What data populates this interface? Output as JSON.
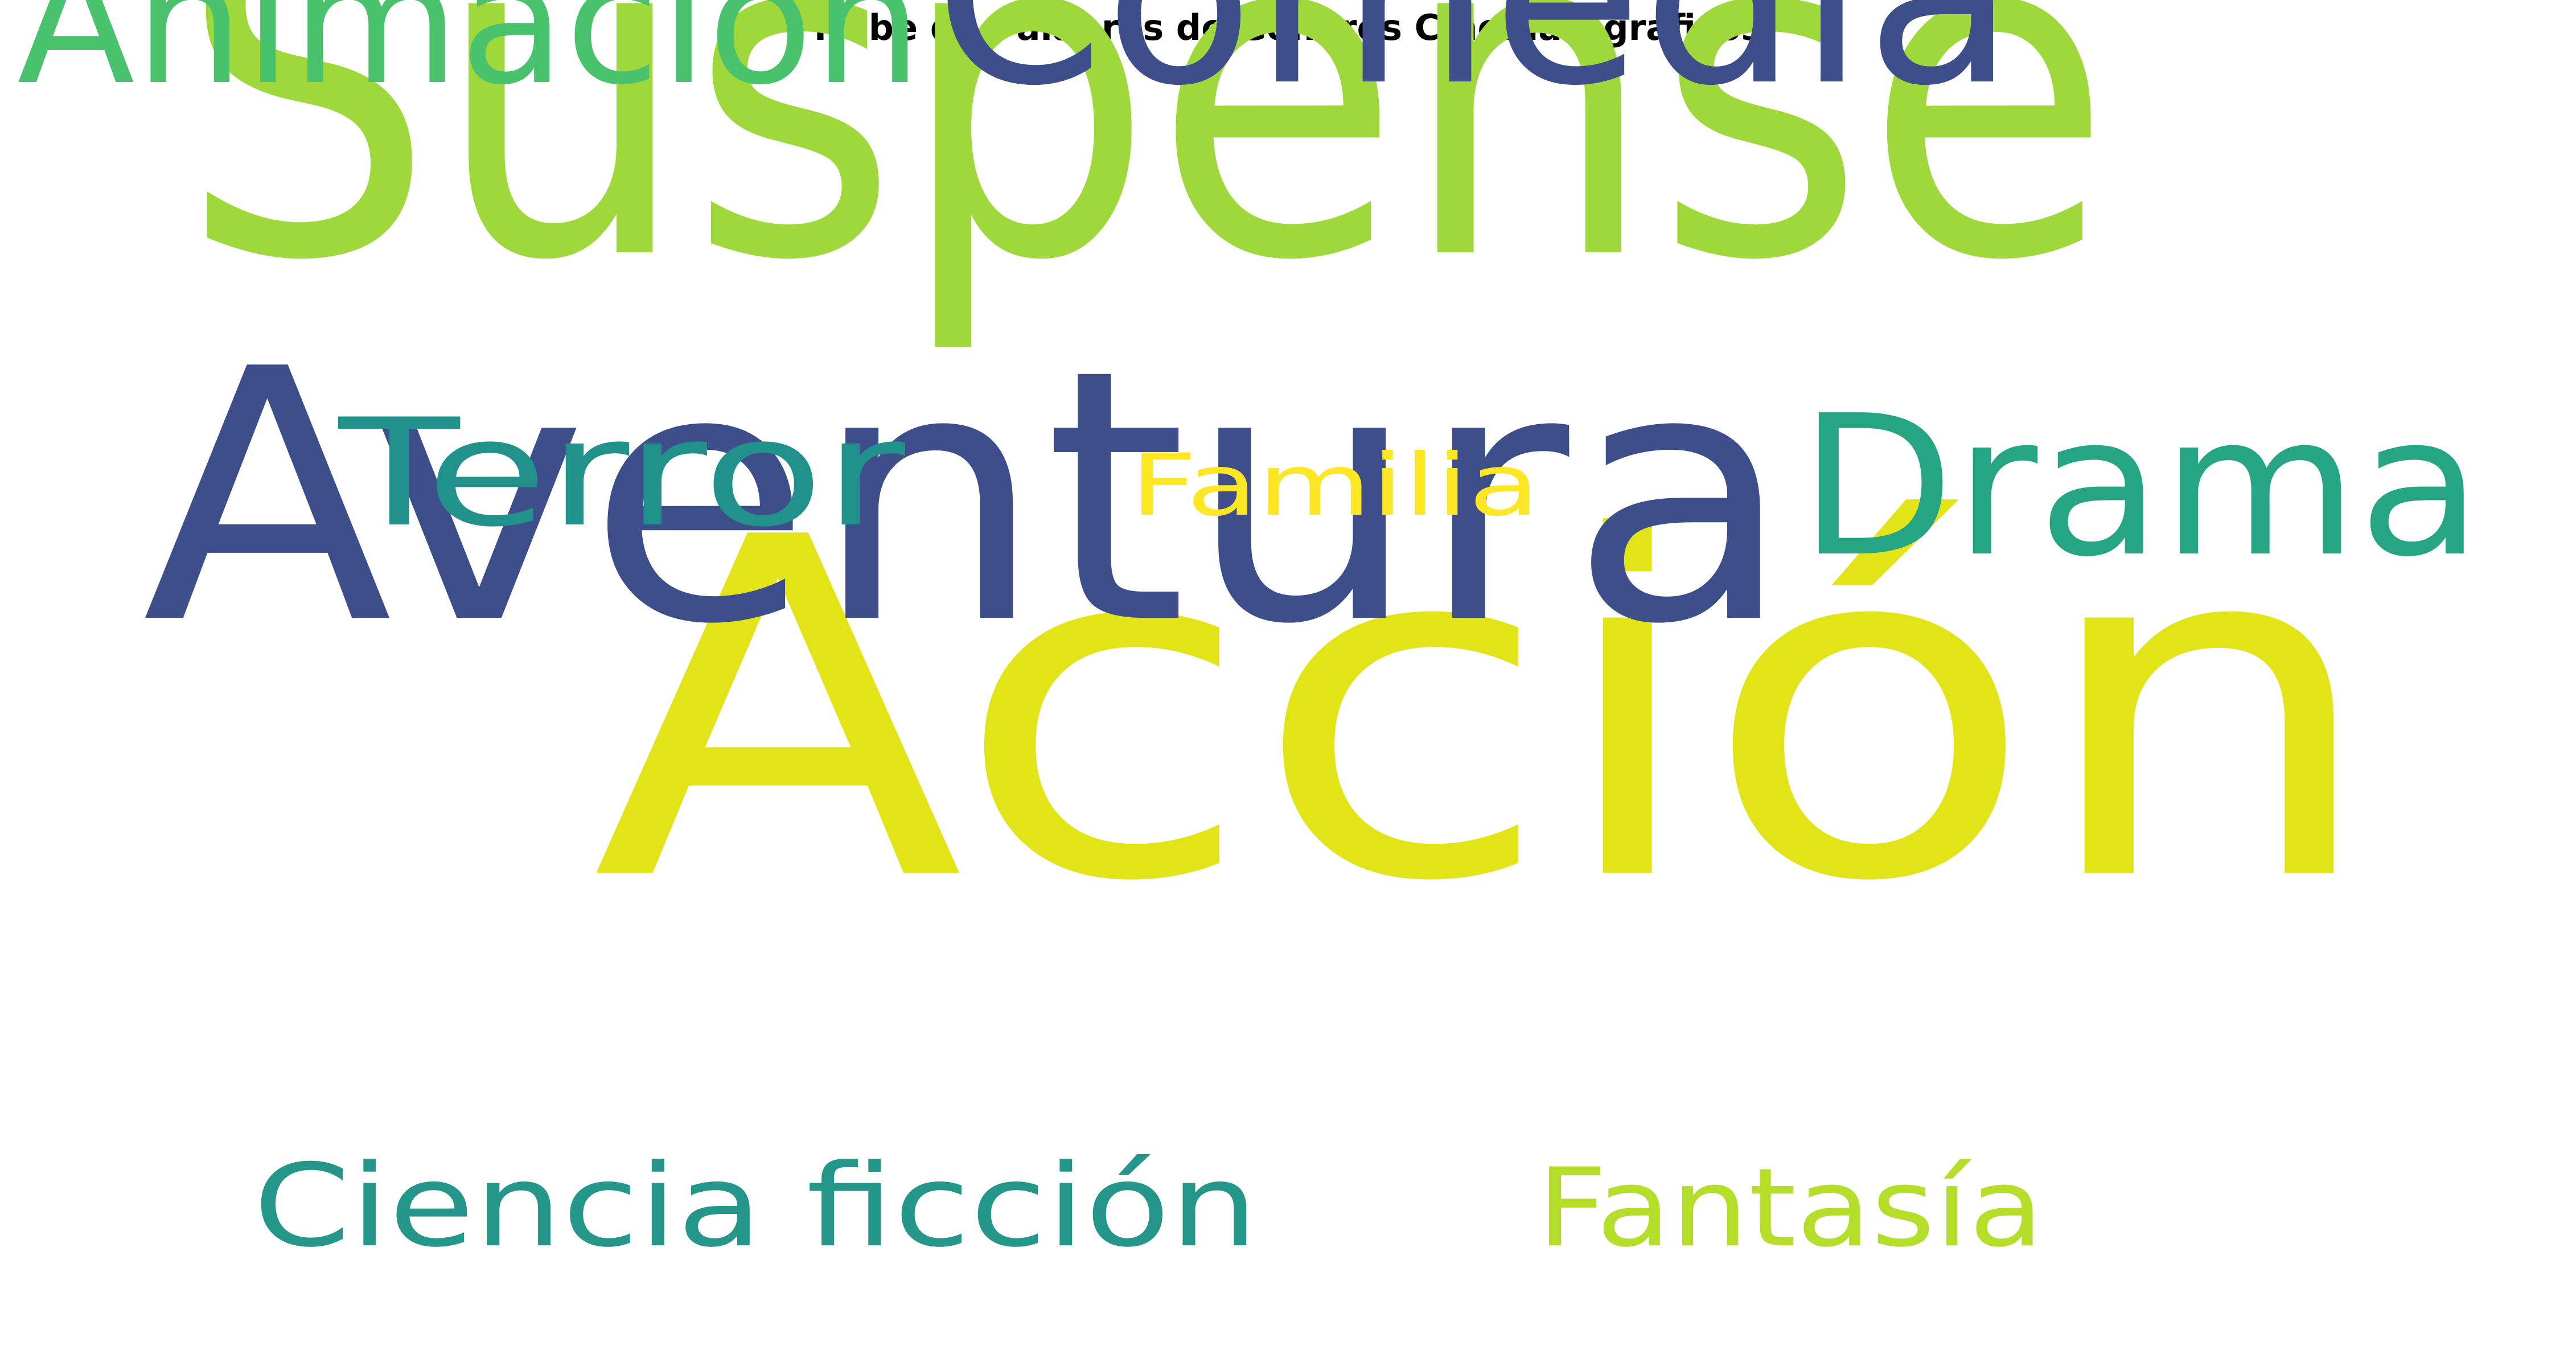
{
  "title": "Nube de Palabras de Géneros Cinematográficos",
  "words": [
    {
      "text": "Suspense",
      "color": "#9fd83b"
    },
    {
      "text": "Acción",
      "color": "#e2e418"
    },
    {
      "text": "Aventura",
      "color": "#3d4e8a"
    },
    {
      "text": "Comedia",
      "color": "#3d4e8a"
    },
    {
      "text": "Animación",
      "color": "#4ac16d"
    },
    {
      "text": "Drama",
      "color": "#25a584"
    },
    {
      "text": "Terror",
      "color": "#21918c"
    },
    {
      "text": "Familia",
      "color": "#fde725"
    },
    {
      "text": "Ciencia ficción",
      "color": "#25968a"
    },
    {
      "text": "Fantasía",
      "color": "#b5de2b"
    }
  ]
}
